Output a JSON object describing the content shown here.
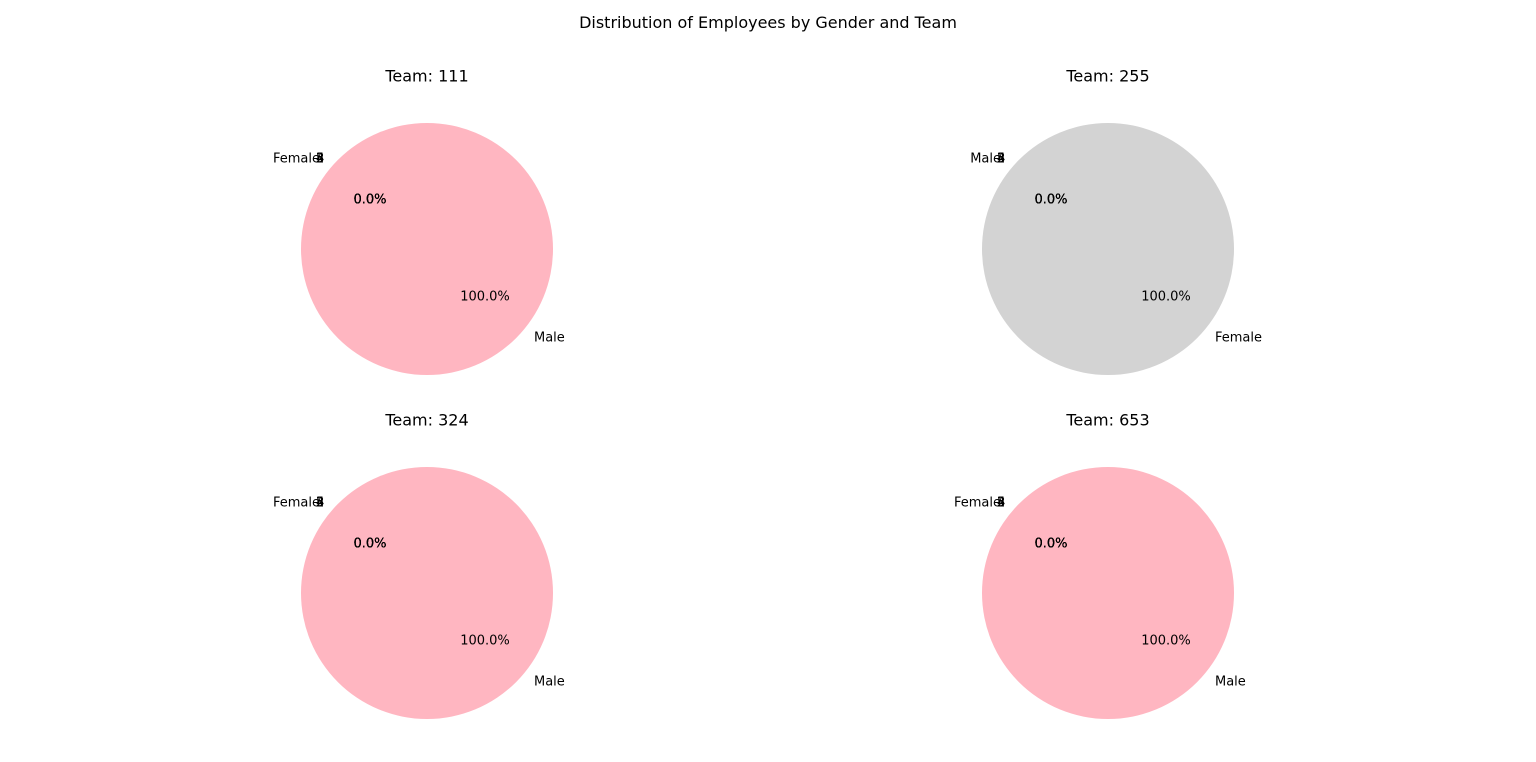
{
  "figure": {
    "title": "Distribution of Employees by Gender and Team"
  },
  "colors": {
    "pink": "#ffb6c1",
    "gray": "#d3d3d3"
  },
  "chart_data": [
    {
      "type": "pie",
      "title": "Team: 111",
      "slices": [
        {
          "label": "Male",
          "value": 100.0,
          "pct_label": "100.0%",
          "color": "#ffb6c1"
        },
        {
          "label": "Female",
          "value": 0.0,
          "pct_label": "0.0%",
          "color": "#d3d3d3"
        }
      ],
      "stacked_zero_labels": [
        "Female",
        "0.0%",
        "0.0%",
        "0.0%",
        "0.0%",
        "5",
        "4",
        "3",
        "2"
      ]
    },
    {
      "type": "pie",
      "title": "Team: 255",
      "slices": [
        {
          "label": "Female",
          "value": 100.0,
          "pct_label": "100.0%",
          "color": "#d3d3d3"
        },
        {
          "label": "Male",
          "value": 0.0,
          "pct_label": "0.0%",
          "color": "#ffb6c1"
        }
      ],
      "stacked_zero_labels": [
        "Male",
        "0.0%",
        "0.0%",
        "0.0%",
        "0.0%",
        "5",
        "4",
        "3",
        "2"
      ]
    },
    {
      "type": "pie",
      "title": "Team: 324",
      "slices": [
        {
          "label": "Male",
          "value": 100.0,
          "pct_label": "100.0%",
          "color": "#ffb6c1"
        },
        {
          "label": "Female",
          "value": 0.0,
          "pct_label": "0.0%",
          "color": "#d3d3d3"
        }
      ],
      "stacked_zero_labels": [
        "Female",
        "0.0%",
        "0.0%",
        "0.0%",
        "0.0%",
        "5",
        "4",
        "3",
        "2"
      ]
    },
    {
      "type": "pie",
      "title": "Team: 653",
      "slices": [
        {
          "label": "Male",
          "value": 100.0,
          "pct_label": "100.0%",
          "color": "#ffb6c1"
        },
        {
          "label": "Female",
          "value": 0.0,
          "pct_label": "0.0%",
          "color": "#d3d3d3"
        }
      ],
      "stacked_zero_labels": [
        "Female",
        "0.0%",
        "0.0%",
        "0.0%",
        "0.0%",
        "5",
        "4",
        "3",
        "2"
      ]
    }
  ]
}
